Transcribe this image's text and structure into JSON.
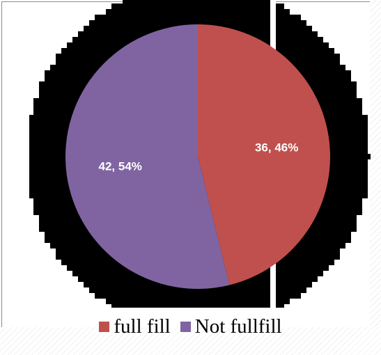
{
  "chart_data": {
    "type": "pie",
    "slices": [
      {
        "label": "full fill",
        "value": 36,
        "percent": 46,
        "data_label": "36, 46%",
        "color": "#c0504d"
      },
      {
        "label": "Not fullfill",
        "value": 42,
        "percent": 54,
        "data_label": "42, 54%",
        "color": "#8064a2"
      }
    ],
    "start_angle_deg": 0,
    "direction": "clockwise",
    "legend_position": "bottom"
  },
  "legend": {
    "items": [
      {
        "label": "full fill",
        "color": "#c0504d"
      },
      {
        "label": "Not fullfill",
        "color": "#8064a2"
      }
    ]
  },
  "decoration": {
    "backdrop_color": "#000000"
  }
}
